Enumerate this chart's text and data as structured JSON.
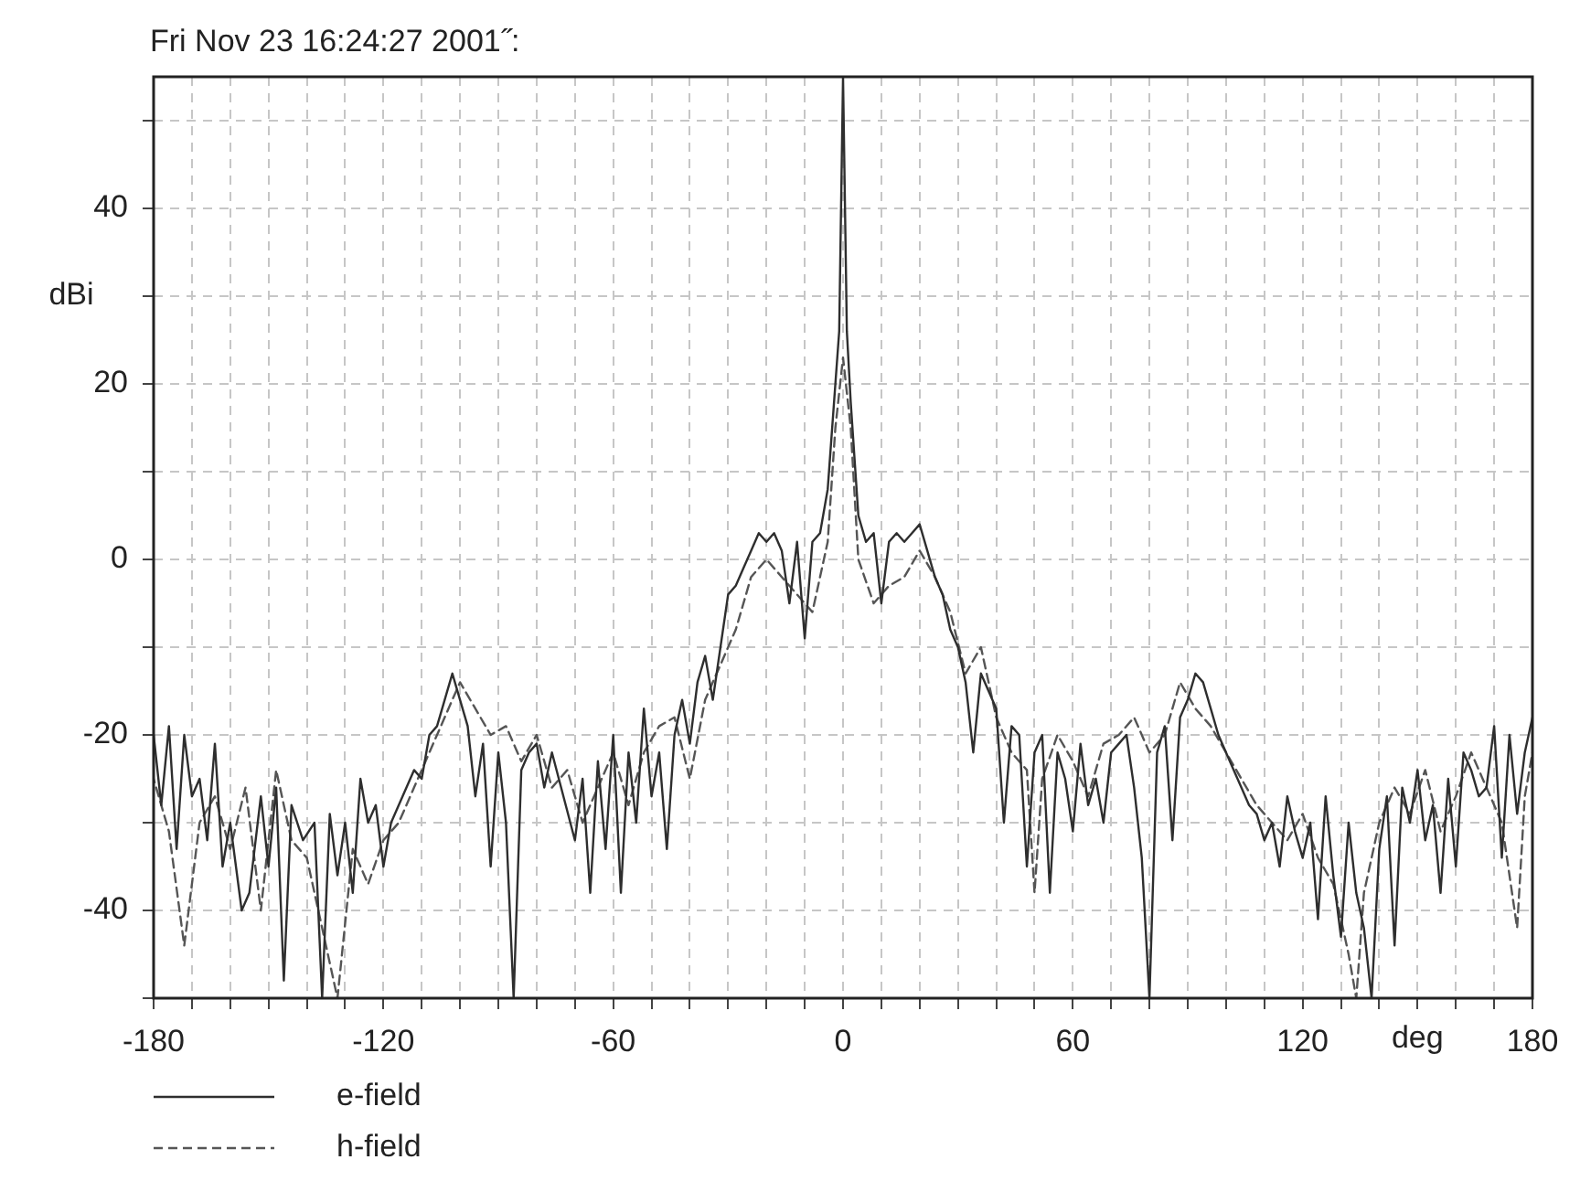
{
  "chart_data": {
    "type": "line",
    "title": "Fri Nov 23 16:24:27 2001˝:",
    "xlabel": "deg",
    "ylabel": "dBi",
    "xlim": [
      -180,
      180
    ],
    "xticks": [
      -180,
      {
        "value": -170,
        "label": null
      },
      {
        "value": -160,
        "label": null
      },
      {
        "value": -150,
        "label": null
      },
      {
        "value": -140,
        "label": null
      },
      {
        "value": -130,
        "label": null
      },
      -120,
      {
        "value": -110,
        "label": null
      },
      {
        "value": -100,
        "label": null
      },
      {
        "value": -90,
        "label": null
      },
      {
        "value": -80,
        "label": null
      },
      {
        "value": -70,
        "label": null
      },
      -60,
      {
        "value": -50,
        "label": null
      },
      {
        "value": -40,
        "label": null
      },
      {
        "value": -30,
        "label": null
      },
      {
        "value": -20,
        "label": null
      },
      {
        "value": -10,
        "label": null
      },
      0,
      {
        "value": 10,
        "label": null
      },
      {
        "value": 20,
        "label": null
      },
      {
        "value": 30,
        "label": null
      },
      {
        "value": 40,
        "label": null
      },
      {
        "value": 50,
        "label": null
      },
      60,
      {
        "value": 70,
        "label": null
      },
      {
        "value": 80,
        "label": null
      },
      {
        "value": 90,
        "label": null
      },
      {
        "value": 100,
        "label": null
      },
      {
        "value": 110,
        "label": null
      },
      120,
      {
        "value": 130,
        "label": null
      },
      {
        "value": 140,
        "label": null
      },
      {
        "value": 150,
        "label": null
      },
      {
        "value": 160,
        "label": null
      },
      {
        "value": 170,
        "label": null
      },
      180
    ],
    "ylim": [
      -50,
      55
    ],
    "yticks": [
      {
        "value": -50,
        "label": null
      },
      -40,
      {
        "value": -30,
        "label": null
      },
      -20,
      {
        "value": -10,
        "label": null
      },
      0,
      {
        "value": 10,
        "label": null
      },
      20,
      {
        "value": 30,
        "label": null
      },
      40,
      {
        "value": 50,
        "label": null
      }
    ],
    "grid": true,
    "legend": "bottom left",
    "marker": "none",
    "series": [
      {
        "name": "e-field",
        "color": "#2e2e2e",
        "line_style": "solid",
        "x": [
          -180,
          -178,
          -176,
          -174,
          -172,
          -170,
          -168,
          -166,
          -164,
          -162,
          -160,
          -157,
          -155,
          -152,
          -150,
          -148,
          -146,
          -144,
          -141,
          -138,
          -136,
          -134,
          -132,
          -130,
          -128,
          -126,
          -124,
          -122,
          -120,
          -118,
          -115,
          -112,
          -110,
          -108,
          -106,
          -104,
          -102,
          -100,
          -98,
          -96,
          -94,
          -92,
          -90,
          -88,
          -86,
          -84,
          -82,
          -80,
          -78,
          -76,
          -73,
          -70,
          -68,
          -66,
          -64,
          -62,
          -60,
          -58,
          -56,
          -54,
          -52,
          -50,
          -48,
          -46,
          -44,
          -42,
          -40,
          -38,
          -36,
          -34,
          -32,
          -30,
          -28,
          -26,
          -24,
          -22,
          -20,
          -18,
          -16,
          -14,
          -12,
          -10,
          -8,
          -6,
          -4,
          -2,
          -1,
          0,
          1,
          2,
          4,
          6,
          8,
          10,
          12,
          14,
          16,
          18,
          20,
          22,
          24,
          26,
          28,
          30,
          32,
          34,
          36,
          38,
          40,
          42,
          44,
          46,
          48,
          50,
          52,
          54,
          56,
          58,
          60,
          62,
          64,
          66,
          68,
          70,
          72,
          74,
          76,
          78,
          80,
          82,
          84,
          86,
          88,
          90,
          92,
          94,
          96,
          98,
          100,
          102,
          104,
          106,
          108,
          110,
          112,
          114,
          116,
          118,
          120,
          122,
          124,
          126,
          128,
          130,
          132,
          134,
          136,
          138,
          140,
          142,
          144,
          146,
          148,
          150,
          152,
          154,
          156,
          158,
          160,
          162,
          164,
          166,
          168,
          170,
          172,
          174,
          176,
          178,
          180
        ],
        "values": [
          -20,
          -28,
          -19,
          -33,
          -20,
          -27,
          -25,
          -32,
          -21,
          -35,
          -30,
          -40,
          -38,
          -27,
          -35,
          -26,
          -48,
          -28,
          -32,
          -30,
          -50,
          -29,
          -36,
          -30,
          -38,
          -25,
          -30,
          -28,
          -35,
          -30,
          -27,
          -24,
          -25,
          -20,
          -19,
          -16,
          -13,
          -16,
          -19,
          -27,
          -21,
          -35,
          -22,
          -30,
          -50,
          -24,
          -22,
          -21,
          -26,
          -22,
          -27,
          -32,
          -25,
          -38,
          -23,
          -33,
          -20,
          -38,
          -22,
          -30,
          -17,
          -27,
          -22,
          -33,
          -20,
          -16,
          -21,
          -14,
          -11,
          -16,
          -10,
          -4,
          -3,
          -1,
          1,
          3,
          2,
          3,
          1,
          -5,
          2,
          -9,
          2,
          3,
          8,
          20,
          26,
          55,
          26,
          18,
          5,
          2,
          3,
          -5,
          2,
          3,
          2,
          3,
          4,
          1,
          -2,
          -4,
          -8,
          -10,
          -14,
          -22,
          -13,
          -15,
          -17,
          -30,
          -19,
          -20,
          -35,
          -22,
          -20,
          -38,
          -22,
          -25,
          -31,
          -21,
          -28,
          -25,
          -30,
          -22,
          -21,
          -20,
          -26,
          -34,
          -50,
          -22,
          -19,
          -32,
          -18,
          -16,
          -13,
          -14,
          -17,
          -20,
          -22,
          -24,
          -26,
          -28,
          -29,
          -32,
          -30,
          -35,
          -27,
          -31,
          -34,
          -30,
          -41,
          -27,
          -36,
          -43,
          -30,
          -38,
          -42,
          -50,
          -33,
          -27,
          -44,
          -26,
          -30,
          -24,
          -32,
          -28,
          -38,
          -25,
          -35,
          -22,
          -24,
          -27,
          -26,
          -19,
          -34,
          -20,
          -29,
          -22,
          -18
        ]
      },
      {
        "name": "h-field",
        "color": "#555555",
        "line_style": "dashed",
        "x": [
          -180,
          -176,
          -172,
          -168,
          -164,
          -160,
          -156,
          -152,
          -148,
          -144,
          -140,
          -136,
          -132,
          -128,
          -124,
          -120,
          -116,
          -112,
          -108,
          -104,
          -100,
          -96,
          -92,
          -88,
          -84,
          -80,
          -76,
          -72,
          -68,
          -64,
          -60,
          -56,
          -52,
          -48,
          -44,
          -40,
          -36,
          -32,
          -28,
          -24,
          -20,
          -16,
          -12,
          -8,
          -4,
          -2,
          0,
          2,
          4,
          8,
          12,
          16,
          20,
          24,
          28,
          32,
          36,
          40,
          44,
          48,
          50,
          52,
          56,
          60,
          64,
          68,
          72,
          76,
          80,
          84,
          88,
          92,
          96,
          100,
          104,
          108,
          112,
          116,
          120,
          124,
          128,
          132,
          134,
          136,
          140,
          144,
          148,
          152,
          156,
          160,
          164,
          168,
          172,
          176,
          178,
          180
        ],
        "values": [
          -25,
          -31,
          -44,
          -30,
          -27,
          -33,
          -26,
          -40,
          -24,
          -32,
          -34,
          -42,
          -50,
          -33,
          -37,
          -32,
          -30,
          -26,
          -22,
          -18,
          -14,
          -17,
          -20,
          -19,
          -23,
          -20,
          -26,
          -24,
          -30,
          -26,
          -22,
          -28,
          -22,
          -19,
          -18,
          -25,
          -16,
          -12,
          -8,
          -2,
          0,
          -2,
          -4,
          -6,
          2,
          15,
          23,
          15,
          0,
          -5,
          -3,
          -2,
          1,
          -2,
          -6,
          -13,
          -10,
          -18,
          -22,
          -24,
          -38,
          -25,
          -20,
          -23,
          -27,
          -21,
          -20,
          -18,
          -22,
          -20,
          -14,
          -17,
          -19,
          -22,
          -25,
          -28,
          -30,
          -32,
          -29,
          -34,
          -37,
          -45,
          -50,
          -38,
          -30,
          -26,
          -29,
          -24,
          -31,
          -27,
          -22,
          -26,
          -30,
          -42,
          -27,
          -22
        ]
      }
    ]
  }
}
